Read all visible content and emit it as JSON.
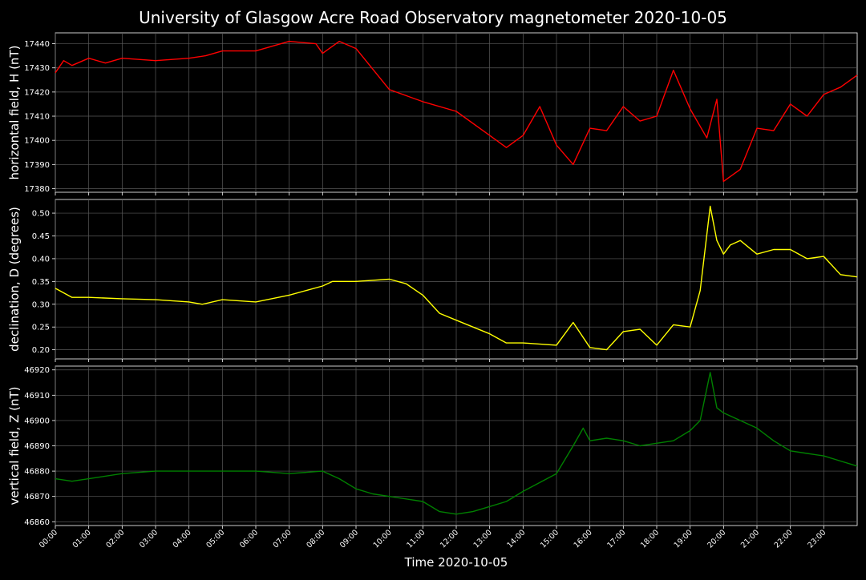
{
  "title": "University of Glasgow Acre Road Observatory magnetometer 2020-10-05",
  "xlabel": "Time 2020-10-05",
  "x_tick_labels": [
    "00:00",
    "01:00",
    "02:00",
    "03:00",
    "04:00",
    "05:00",
    "06:00",
    "07:00",
    "08:00",
    "09:00",
    "10:00",
    "11:00",
    "12:00",
    "13:00",
    "14:00",
    "15:00",
    "16:00",
    "17:00",
    "18:00",
    "19:00",
    "20:00",
    "21:00",
    "22:00",
    "23:00"
  ],
  "chart_data": [
    {
      "type": "line",
      "ylabel": "horizontal field, H (nT)",
      "ylim": [
        17378.5,
        17444.5
      ],
      "yticks": [
        17380,
        17390,
        17400,
        17410,
        17420,
        17430,
        17440
      ],
      "grid": true,
      "series": [
        {
          "color": "#ff0000",
          "x": [
            0,
            0.25,
            0.5,
            1,
            1.5,
            2,
            3,
            4,
            4.5,
            5,
            6,
            7,
            7.8,
            8,
            8.5,
            9,
            10,
            11,
            12,
            13,
            13.5,
            14,
            14.5,
            15,
            15.5,
            16,
            16.5,
            17,
            17.5,
            18,
            18.5,
            19,
            19.5,
            19.8,
            20,
            20.5,
            21,
            21.5,
            22,
            22.5,
            23,
            23.5,
            24
          ],
          "y": [
            17428,
            17433,
            17431,
            17434,
            17432,
            17434,
            17433,
            17434,
            17435,
            17437,
            17437,
            17441,
            17440,
            17436,
            17441,
            17438,
            17421,
            17416,
            17412,
            17402,
            17397,
            17402,
            17414,
            17398,
            17390,
            17405,
            17404,
            17414,
            17408,
            17410,
            17429,
            17413,
            17401,
            17417,
            17383,
            17388,
            17405,
            17404,
            17415,
            17410,
            17419,
            17422,
            17427
          ]
        }
      ]
    },
    {
      "type": "line",
      "ylabel": "declination, D (degrees)",
      "ylim": [
        0.18,
        0.53
      ],
      "yticks": [
        0.2,
        0.25,
        0.3,
        0.35,
        0.4,
        0.45,
        0.5
      ],
      "grid": true,
      "series": [
        {
          "color": "#ffff00",
          "x": [
            0,
            0.5,
            1,
            2,
            3,
            4,
            4.4,
            5,
            6,
            7,
            8,
            8.3,
            9,
            10,
            10.5,
            11,
            11.5,
            12,
            12.5,
            13,
            13.5,
            14,
            15,
            15.5,
            16,
            16.5,
            17,
            17.5,
            18,
            18.5,
            19,
            19.3,
            19.6,
            19.8,
            20,
            20.2,
            20.5,
            21,
            21.5,
            22,
            22.5,
            23,
            23.5,
            24
          ],
          "y": [
            0.335,
            0.315,
            0.315,
            0.312,
            0.31,
            0.305,
            0.3,
            0.31,
            0.305,
            0.32,
            0.34,
            0.35,
            0.35,
            0.355,
            0.345,
            0.32,
            0.28,
            0.265,
            0.25,
            0.235,
            0.215,
            0.215,
            0.21,
            0.26,
            0.205,
            0.2,
            0.24,
            0.245,
            0.21,
            0.255,
            0.25,
            0.33,
            0.515,
            0.44,
            0.41,
            0.43,
            0.44,
            0.41,
            0.42,
            0.42,
            0.4,
            0.405,
            0.365,
            0.36
          ]
        }
      ]
    },
    {
      "type": "line",
      "ylabel": "vertical field, Z (nT)",
      "ylim": [
        46858.5,
        46921.5
      ],
      "yticks": [
        46860,
        46870,
        46880,
        46890,
        46900,
        46910,
        46920
      ],
      "grid": true,
      "series": [
        {
          "color": "#008000",
          "x": [
            0,
            0.5,
            1,
            2,
            3,
            4,
            5,
            6,
            7,
            8,
            8.5,
            9,
            9.5,
            10,
            11,
            11.5,
            12,
            12.5,
            13,
            13.5,
            14,
            15,
            15.5,
            15.8,
            16,
            16.5,
            17,
            17.5,
            18,
            18.5,
            19,
            19.3,
            19.6,
            19.8,
            20,
            21,
            21.5,
            22,
            22.5,
            23,
            23.5,
            24
          ],
          "y": [
            46877,
            46876,
            46877,
            46879,
            46880,
            46880,
            46880,
            46880,
            46879,
            46880,
            46877,
            46873,
            46871,
            46870,
            46868,
            46864,
            46863,
            46864,
            46866,
            46868,
            46872,
            46879,
            46890,
            46897,
            46892,
            46893,
            46892,
            46890,
            46891,
            46892,
            46896,
            46900,
            46919,
            46905,
            46903,
            46897,
            46892,
            46888,
            46887,
            46886,
            46884,
            46882
          ]
        }
      ]
    }
  ]
}
